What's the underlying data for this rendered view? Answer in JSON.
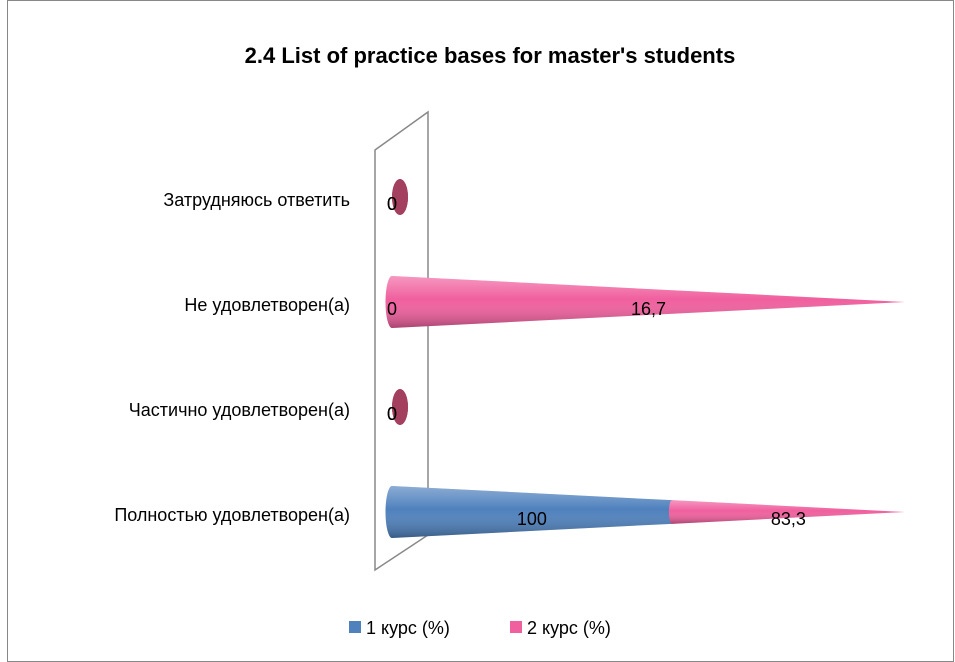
{
  "chart_data": {
    "type": "cone",
    "title": "2.4 List of practice bases for master's students",
    "categories": [
      "Полностью удовлетворен(а)",
      "Частично удовлетворен(а)",
      "Не удовлетворен(а)",
      "Затрудняюсь ответить"
    ],
    "series": [
      {
        "name": "1 курс (%)",
        "color": "#4f81bd",
        "values": [
          100,
          0,
          0,
          0
        ],
        "value_labels": [
          "100",
          "0",
          "0",
          "0"
        ]
      },
      {
        "name": "2 курс (%)",
        "color": "#f0609e",
        "values": [
          83.3,
          0,
          16.7,
          0
        ],
        "value_labels": [
          "83,3",
          "0",
          "16,7",
          "0"
        ]
      }
    ],
    "stacked": "percent",
    "legend": "bottom"
  }
}
